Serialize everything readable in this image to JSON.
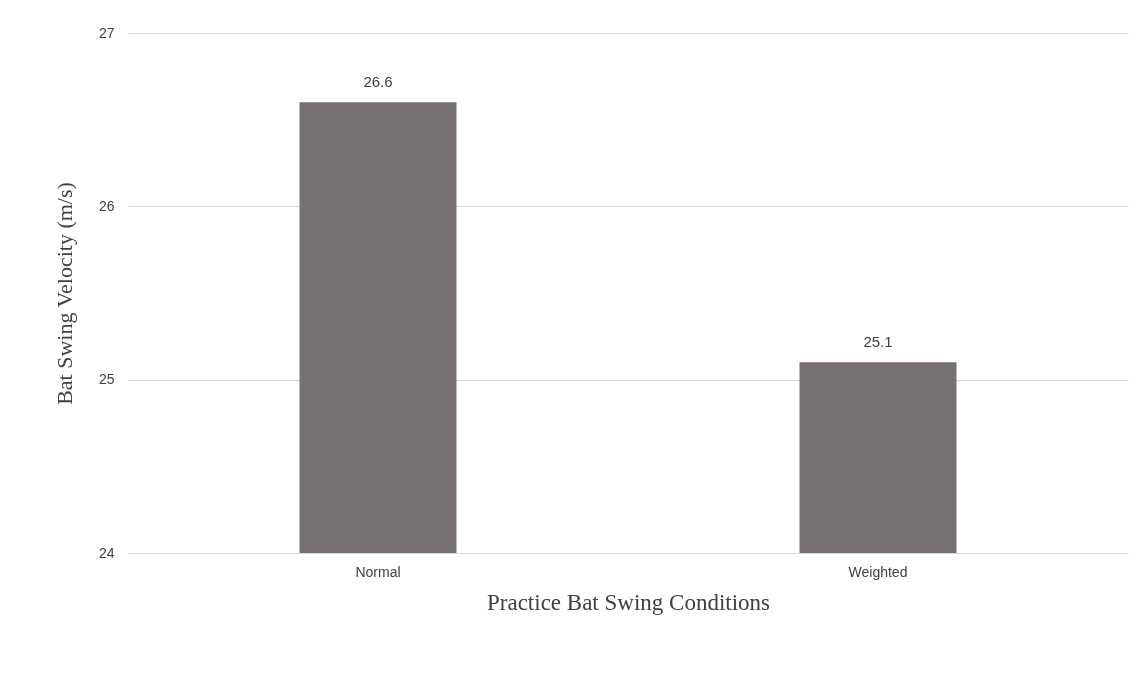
{
  "chart_data": {
    "type": "bar",
    "xlabel": "Practice Bat Swing Conditions",
    "ylabel": "Bat Swing Velocity (m/s)",
    "categories": [
      "Normal",
      "Weighted"
    ],
    "values": [
      26.6,
      25.1
    ],
    "color": "#767170",
    "ylim": [
      24,
      27
    ],
    "yticks": [
      24,
      25,
      26,
      27
    ],
    "grid": "y",
    "data_labels": true
  }
}
